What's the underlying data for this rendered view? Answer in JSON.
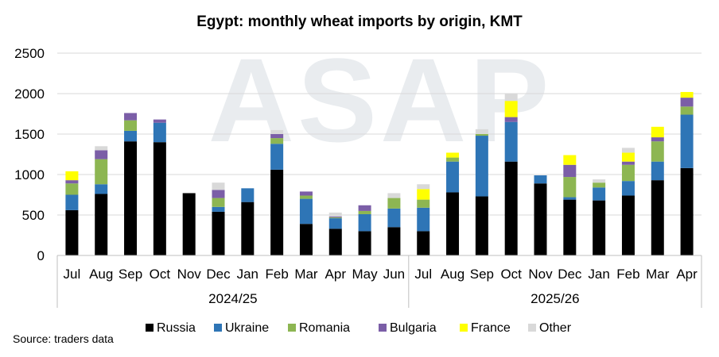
{
  "chart_data": {
    "type": "bar",
    "stacked": true,
    "title": "Egypt: monthly wheat imports by origin, KMT",
    "xlabel": "",
    "ylabel": "",
    "ylim": [
      0,
      2500
    ],
    "yticks": [
      0,
      500,
      1000,
      1500,
      2000,
      2500
    ],
    "grid": true,
    "legend_position": "bottom",
    "categories": [
      "Jul",
      "Aug",
      "Sep",
      "Oct",
      "Nov",
      "Dec",
      "Jan",
      "Feb",
      "Mar",
      "Apr",
      "May",
      "Jun",
      "Jul",
      "Aug",
      "Sep",
      "Oct",
      "Nov",
      "Dec",
      "Jan",
      "Feb",
      "Mar",
      "Apr"
    ],
    "groups": [
      {
        "label": "2024/25",
        "count": 12
      },
      {
        "label": "2025/26",
        "count": 10
      }
    ],
    "series": [
      {
        "name": "Russia",
        "color": "#000000",
        "values": [
          560,
          760,
          1410,
          1400,
          770,
          540,
          660,
          1060,
          390,
          330,
          300,
          350,
          300,
          780,
          730,
          1160,
          890,
          690,
          680,
          740,
          930,
          1080
        ]
      },
      {
        "name": "Ukraine",
        "color": "#2e75b6",
        "values": [
          190,
          120,
          130,
          240,
          0,
          60,
          170,
          320,
          310,
          130,
          210,
          230,
          290,
          380,
          750,
          490,
          100,
          30,
          160,
          180,
          230,
          660
        ]
      },
      {
        "name": "Romania",
        "color": "#8db652",
        "values": [
          140,
          310,
          130,
          0,
          0,
          110,
          0,
          70,
          40,
          10,
          40,
          130,
          100,
          50,
          20,
          0,
          0,
          250,
          60,
          200,
          250,
          100
        ]
      },
      {
        "name": "Bulgaria",
        "color": "#7b5ea7",
        "values": [
          40,
          110,
          90,
          40,
          0,
          100,
          0,
          50,
          50,
          10,
          70,
          0,
          0,
          0,
          0,
          60,
          0,
          150,
          0,
          40,
          50,
          110
        ]
      },
      {
        "name": "France",
        "color": "#ffff00",
        "values": [
          110,
          0,
          0,
          0,
          0,
          0,
          0,
          0,
          0,
          0,
          0,
          0,
          130,
          60,
          0,
          200,
          0,
          120,
          0,
          110,
          130,
          70
        ]
      },
      {
        "name": "Other",
        "color": "#d9d9d9",
        "values": [
          0,
          50,
          0,
          0,
          0,
          90,
          0,
          50,
          0,
          50,
          0,
          60,
          60,
          0,
          60,
          90,
          0,
          0,
          40,
          60,
          0,
          0
        ]
      }
    ],
    "source": "Source: traders data",
    "watermark": "ASAP"
  }
}
